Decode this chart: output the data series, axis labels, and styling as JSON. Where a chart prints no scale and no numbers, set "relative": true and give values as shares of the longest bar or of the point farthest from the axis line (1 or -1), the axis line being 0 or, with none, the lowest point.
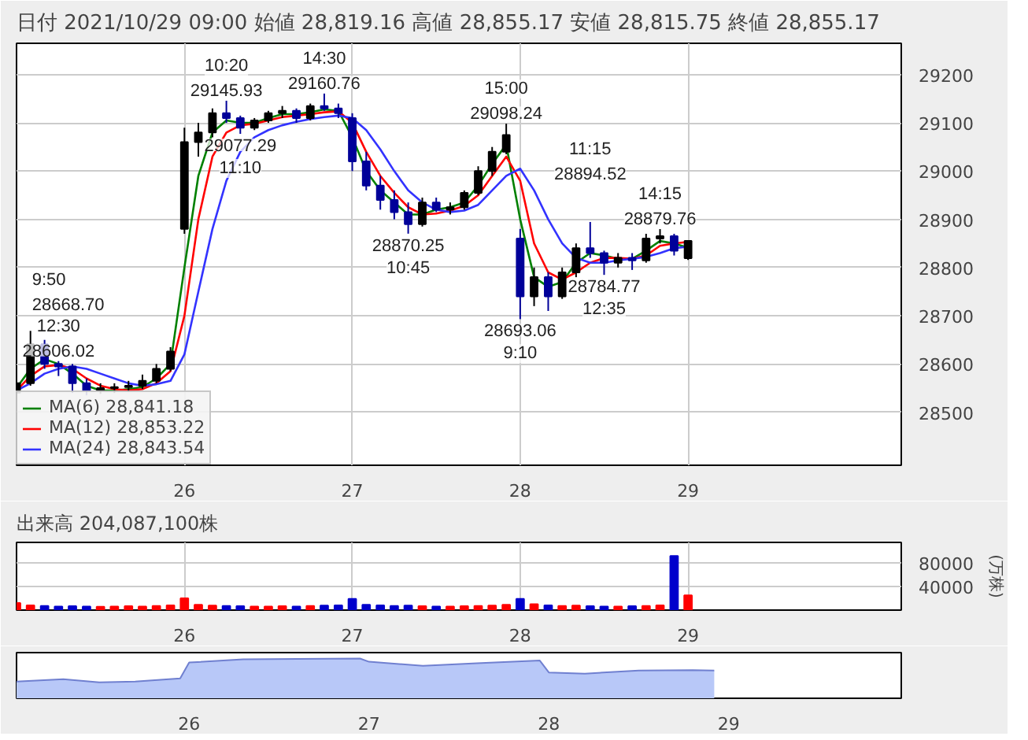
{
  "chart_data": [
    {
      "type": "candlestick",
      "title": "日付 2021/10/29 09:00 始値 28,819.16 高値 28,855.17 安値 28,815.75 終値 28,855.17",
      "x": [
        25,
        25.083,
        25.167,
        25.25,
        25.333,
        25.417,
        25.5,
        25.583,
        25.667,
        25.75,
        25.833,
        25.917,
        26,
        26.083,
        26.167,
        26.25,
        26.333,
        26.417,
        26.5,
        26.583,
        26.667,
        26.75,
        26.833,
        26.917,
        27,
        27.083,
        27.167,
        27.25,
        27.333,
        27.417,
        27.5,
        27.583,
        27.667,
        27.75,
        27.833,
        27.917,
        28,
        28.083,
        28.167,
        28.25,
        28.333,
        28.417,
        28.5,
        28.583,
        28.667,
        28.75,
        28.833,
        28.917,
        29
      ],
      "ohlc": [
        [
          28540,
          28575,
          28538,
          28560
        ],
        [
          28560,
          28668.7,
          28555,
          28640
        ],
        [
          28640,
          28650,
          28590,
          28600
        ],
        [
          28600,
          28606.02,
          28575,
          28595
        ],
        [
          28595,
          28600,
          28540,
          28560
        ],
        [
          28560,
          28570,
          28535,
          28545
        ],
        [
          28545,
          28560,
          28538,
          28550
        ],
        [
          28550,
          28560,
          28540,
          28552
        ],
        [
          28552,
          28565,
          28542,
          28555
        ],
        [
          28555,
          28578,
          28548,
          28565
        ],
        [
          28565,
          28600,
          28560,
          28590
        ],
        [
          28590,
          28635,
          28585,
          28626
        ],
        [
          28880,
          29090,
          28870,
          29060
        ],
        [
          29060,
          29100,
          29030,
          29080
        ],
        [
          29080,
          29130,
          29070,
          29120
        ],
        [
          29120,
          29145.93,
          29100,
          29110
        ],
        [
          29110,
          29115,
          29077.29,
          29090
        ],
        [
          29090,
          29110,
          29085,
          29105
        ],
        [
          29105,
          29125,
          29100,
          29120
        ],
        [
          29120,
          29135,
          29110,
          29125
        ],
        [
          29125,
          29130,
          29100,
          29110
        ],
        [
          29110,
          29140,
          29105,
          29135
        ],
        [
          29135,
          29160.76,
          29125,
          29130
        ],
        [
          29130,
          29140,
          29110,
          29120
        ],
        [
          29110,
          29120,
          29000,
          29020
        ],
        [
          29020,
          29040,
          28960,
          28970
        ],
        [
          28970,
          28990,
          28920,
          28940
        ],
        [
          28940,
          28960,
          28900,
          28915
        ],
        [
          28915,
          28935,
          28870.25,
          28890
        ],
        [
          28890,
          28945,
          28885,
          28935
        ],
        [
          28935,
          28945,
          28915,
          28920
        ],
        [
          28920,
          28935,
          28910,
          28925
        ],
        [
          28925,
          28960,
          28920,
          28955
        ],
        [
          28955,
          29010,
          28950,
          29000
        ],
        [
          29000,
          29050,
          28990,
          29040
        ],
        [
          29040,
          29098.24,
          29035,
          29075
        ],
        [
          28860,
          28880,
          28693.06,
          28740
        ],
        [
          28740,
          28800,
          28720,
          28780
        ],
        [
          28780,
          28790,
          28710,
          28740
        ],
        [
          28740,
          28800,
          28735,
          28790
        ],
        [
          28790,
          28850,
          28780,
          28840
        ],
        [
          28840,
          28894.52,
          28820,
          28830
        ],
        [
          28830,
          28835,
          28784.77,
          28810
        ],
        [
          28810,
          28830,
          28800,
          28820
        ],
        [
          28820,
          28830,
          28795,
          28815
        ],
        [
          28815,
          28870,
          28810,
          28860
        ],
        [
          28860,
          28879.76,
          28850,
          28865
        ],
        [
          28865,
          28870,
          28825,
          28835
        ],
        [
          28819.16,
          28855.17,
          28815.75,
          28855.17
        ]
      ],
      "colors": [
        "#000000",
        "#000000",
        "#000099",
        "#000099",
        "#000099",
        "#000099",
        "#000000",
        "#000000",
        "#000000",
        "#000000",
        "#000000",
        "#000000",
        "#000000",
        "#000000",
        "#000000",
        "#000099",
        "#000099",
        "#000000",
        "#000000",
        "#000000",
        "#000099",
        "#000000",
        "#000099",
        "#000099",
        "#000099",
        "#000099",
        "#000099",
        "#000099",
        "#000099",
        "#000000",
        "#000099",
        "#000000",
        "#000000",
        "#000000",
        "#000000",
        "#000000",
        "#000099",
        "#000000",
        "#000099",
        "#000000",
        "#000000",
        "#000099",
        "#000099",
        "#000000",
        "#000099",
        "#000000",
        "#000000",
        "#000099",
        "#000000"
      ],
      "series": [
        {
          "type": "line",
          "name": "MA(6) 28,841.18",
          "color": "#008000",
          "values": [
            28550,
            28590,
            28610,
            28600,
            28580,
            28555,
            28545,
            28545,
            28548,
            28552,
            28570,
            28600,
            28800,
            28990,
            29080,
            29105,
            29100,
            29100,
            29110,
            29118,
            29118,
            29122,
            29128,
            29125,
            29070,
            29000,
            28960,
            28935,
            28910,
            28910,
            28920,
            28925,
            28935,
            28970,
            29015,
            29055,
            28900,
            28780,
            28760,
            28770,
            28810,
            28830,
            28825,
            28818,
            28818,
            28835,
            28855,
            28850,
            28841.18
          ]
        },
        {
          "type": "line",
          "name": "MA(12) 28,853.22",
          "color": "#ff0000",
          "values": [
            28545,
            28575,
            28595,
            28598,
            28590,
            28570,
            28555,
            28548,
            28545,
            28548,
            28560,
            28585,
            28700,
            28900,
            29030,
            29080,
            29095,
            29098,
            29105,
            29112,
            29115,
            29118,
            29122,
            29124,
            29100,
            29040,
            28990,
            28955,
            28925,
            28910,
            28912,
            28918,
            28928,
            28950,
            28990,
            29030,
            28980,
            28850,
            28790,
            28775,
            28790,
            28810,
            28820,
            28820,
            28818,
            28825,
            28845,
            28850,
            28853.22
          ]
        },
        {
          "type": "line",
          "name": "MA(24) 28,843.54",
          "color": "#3333ff",
          "values": [
            28545,
            28560,
            28580,
            28590,
            28595,
            28590,
            28580,
            28570,
            28560,
            28555,
            28558,
            28565,
            28620,
            28750,
            28880,
            28980,
            29040,
            29070,
            29085,
            29095,
            29102,
            29108,
            29112,
            29115,
            29110,
            29085,
            29045,
            29000,
            28960,
            28935,
            28920,
            28915,
            28918,
            28930,
            28960,
            28990,
            29005,
            28960,
            28900,
            28850,
            28820,
            28810,
            28810,
            28815,
            28818,
            28822,
            28830,
            28840,
            28843.54
          ]
        }
      ],
      "xlim": [
        25,
        30.27
      ],
      "xticks": [
        26,
        27,
        28,
        29
      ],
      "ylim": [
        28390,
        29265
      ],
      "yticks": [
        28500,
        28600,
        28700,
        28800,
        28900,
        29000,
        29100,
        29200
      ],
      "grid": true,
      "legend": "bottom left",
      "annotations": [
        {
          "text": "9:50\n28668.70",
          "x": 25.083,
          "y": 28668.7
        },
        {
          "text": "12:30\n28606.02",
          "x": 25.25,
          "y": 28606.02
        },
        {
          "text": "10:20\n29145.93",
          "x": 26.25,
          "y": 29145.93
        },
        {
          "text": "29077.29\n11:10",
          "x": 26.333,
          "y": 29077.29
        },
        {
          "text": "14:30\n29160.76",
          "x": 26.833,
          "y": 29160.76
        },
        {
          "text": "28870.25\n10:45",
          "x": 27.333,
          "y": 28870.25
        },
        {
          "text": "15:00\n29098.24",
          "x": 27.917,
          "y": 29098.24
        },
        {
          "text": "28693.06\n9:10",
          "x": 28,
          "y": 28693.06
        },
        {
          "text": "11:15\n28894.52",
          "x": 28.417,
          "y": 28894.52
        },
        {
          "text": "28784.77\n12:35",
          "x": 28.5,
          "y": 28784.77
        },
        {
          "text": "14:15\n28879.76",
          "x": 28.833,
          "y": 28879.76
        }
      ]
    },
    {
      "type": "bar",
      "title": "出来高 204,087,100株",
      "ylabel": "(万株)",
      "x": [
        25,
        25.083,
        25.167,
        25.25,
        25.333,
        25.417,
        25.5,
        25.583,
        25.667,
        25.75,
        25.833,
        25.917,
        26,
        26.083,
        26.167,
        26.25,
        26.333,
        26.417,
        26.5,
        26.583,
        26.667,
        26.75,
        26.833,
        26.917,
        27,
        27.083,
        27.167,
        27.25,
        27.333,
        27.417,
        27.5,
        27.583,
        27.667,
        27.75,
        27.833,
        27.917,
        28,
        28.083,
        28.167,
        28.25,
        28.333,
        28.417,
        28.5,
        28.583,
        28.667,
        28.75,
        28.833,
        28.917,
        29
      ],
      "values": [
        12000,
        8000,
        7000,
        6000,
        6500,
        6000,
        5500,
        6000,
        6500,
        6000,
        7000,
        8000,
        20000,
        9000,
        7500,
        7000,
        6500,
        6000,
        6000,
        6500,
        6000,
        7000,
        7500,
        8000,
        19000,
        9000,
        8000,
        7000,
        7500,
        6500,
        6000,
        6000,
        6500,
        7000,
        7500,
        9000,
        19000,
        10000,
        8000,
        7000,
        7500,
        6500,
        6000,
        6000,
        6500,
        7000,
        8000,
        91000,
        25000
      ],
      "colors": [
        "#ff0000",
        "#ff0000",
        "#0000cc",
        "#0000cc",
        "#0000cc",
        "#0000cc",
        "#ff0000",
        "#ff0000",
        "#ff0000",
        "#ff0000",
        "#ff0000",
        "#ff0000",
        "#ff0000",
        "#ff0000",
        "#ff0000",
        "#0000cc",
        "#0000cc",
        "#ff0000",
        "#ff0000",
        "#ff0000",
        "#0000cc",
        "#ff0000",
        "#0000cc",
        "#0000cc",
        "#0000cc",
        "#0000cc",
        "#0000cc",
        "#0000cc",
        "#0000cc",
        "#ff0000",
        "#0000cc",
        "#ff0000",
        "#ff0000",
        "#ff0000",
        "#ff0000",
        "#ff0000",
        "#0000cc",
        "#ff0000",
        "#0000cc",
        "#ff0000",
        "#ff0000",
        "#0000cc",
        "#0000cc",
        "#ff0000",
        "#0000cc",
        "#ff0000",
        "#ff0000",
        "#0000cc",
        "#ff0000"
      ],
      "xlim": [
        25,
        30.27
      ],
      "xticks": [
        26,
        27,
        28,
        29
      ],
      "ylim": [
        0,
        114000
      ],
      "yticks": [
        40000,
        80000
      ],
      "grid": true
    },
    {
      "type": "area",
      "relative": true,
      "color": "#b8c8f8",
      "x": [
        25.04,
        25.3,
        25.5,
        25.7,
        25.95,
        26.0,
        26.3,
        26.6,
        26.95,
        27.0,
        27.3,
        27.6,
        27.95,
        28.0,
        28.2,
        28.5,
        28.8,
        28.92
      ],
      "values": [
        0.42,
        0.48,
        0.4,
        0.42,
        0.5,
        0.9,
        0.98,
        0.99,
        1.0,
        0.92,
        0.82,
        0.88,
        0.95,
        0.65,
        0.62,
        0.7,
        0.71,
        0.7
      ],
      "xlim": [
        25.04,
        29.96
      ],
      "xticks": [
        26,
        27,
        28,
        29
      ],
      "tick_labels": "x"
    }
  ]
}
